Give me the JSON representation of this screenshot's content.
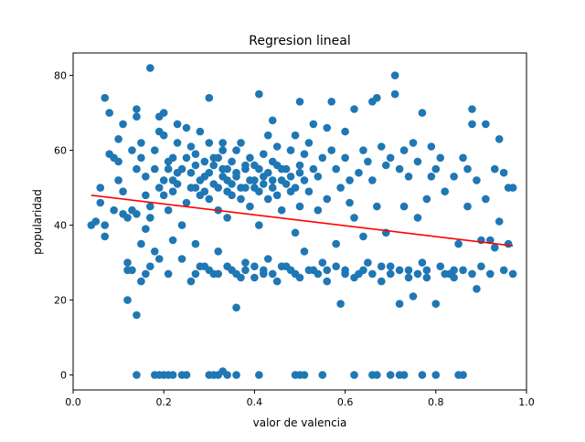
{
  "chart_data": {
    "type": "scatter",
    "title": "Regresion lineal",
    "xlabel": "valor de valencia",
    "ylabel": "popularidad",
    "xlim": [
      0.0,
      1.0
    ],
    "ylim": [
      -4,
      86
    ],
    "x_ticks": [
      0.0,
      0.2,
      0.4,
      0.6,
      0.8,
      1.0
    ],
    "x_tick_labels": [
      "0.0",
      "0.2",
      "0.4",
      "0.6",
      "0.8",
      "1.0"
    ],
    "y_ticks": [
      0,
      20,
      40,
      60,
      80
    ],
    "y_tick_labels": [
      "0",
      "20",
      "40",
      "60",
      "80"
    ],
    "grid": false,
    "colors": {
      "points": "#1f77b4",
      "regression": "#ff0000"
    },
    "series": [
      {
        "type": "scatter",
        "points": [
          [
            0.04,
            40
          ],
          [
            0.05,
            41
          ],
          [
            0.06,
            46
          ],
          [
            0.06,
            50
          ],
          [
            0.07,
            37
          ],
          [
            0.07,
            40
          ],
          [
            0.07,
            74
          ],
          [
            0.08,
            70
          ],
          [
            0.08,
            59
          ],
          [
            0.09,
            58
          ],
          [
            0.09,
            44
          ],
          [
            0.1,
            52
          ],
          [
            0.1,
            57
          ],
          [
            0.1,
            63
          ],
          [
            0.11,
            67
          ],
          [
            0.11,
            49
          ],
          [
            0.11,
            43
          ],
          [
            0.12,
            42
          ],
          [
            0.12,
            28
          ],
          [
            0.12,
            30
          ],
          [
            0.12,
            20
          ],
          [
            0.13,
            28
          ],
          [
            0.13,
            60
          ],
          [
            0.13,
            44
          ],
          [
            0.14,
            69
          ],
          [
            0.14,
            71
          ],
          [
            0.14,
            55
          ],
          [
            0.14,
            43
          ],
          [
            0.14,
            16
          ],
          [
            0.15,
            35
          ],
          [
            0.15,
            58
          ],
          [
            0.15,
            62
          ],
          [
            0.15,
            25
          ],
          [
            0.16,
            27
          ],
          [
            0.16,
            39
          ],
          [
            0.16,
            48
          ],
          [
            0.16,
            53
          ],
          [
            0.17,
            82
          ],
          [
            0.17,
            42
          ],
          [
            0.17,
            45
          ],
          [
            0.17,
            29
          ],
          [
            0.18,
            55
          ],
          [
            0.18,
            60
          ],
          [
            0.18,
            33
          ],
          [
            0.19,
            69
          ],
          [
            0.19,
            50
          ],
          [
            0.19,
            65
          ],
          [
            0.19,
            31
          ],
          [
            0.2,
            64
          ],
          [
            0.2,
            70
          ],
          [
            0.2,
            48
          ],
          [
            0.21,
            57
          ],
          [
            0.21,
            44
          ],
          [
            0.21,
            27
          ],
          [
            0.22,
            52
          ],
          [
            0.22,
            58
          ],
          [
            0.22,
            36
          ],
          [
            0.23,
            62
          ],
          [
            0.23,
            67
          ],
          [
            0.23,
            51
          ],
          [
            0.24,
            55
          ],
          [
            0.24,
            40
          ],
          [
            0.24,
            31
          ],
          [
            0.25,
            66
          ],
          [
            0.25,
            58
          ],
          [
            0.25,
            46
          ],
          [
            0.26,
            54
          ],
          [
            0.26,
            61
          ],
          [
            0.26,
            25
          ],
          [
            0.27,
            59
          ],
          [
            0.27,
            50
          ],
          [
            0.27,
            35
          ],
          [
            0.28,
            48
          ],
          [
            0.28,
            65
          ],
          [
            0.29,
            57
          ],
          [
            0.29,
            53
          ],
          [
            0.29,
            29
          ],
          [
            0.3,
            74
          ],
          [
            0.3,
            62
          ],
          [
            0.3,
            47
          ],
          [
            0.31,
            56
          ],
          [
            0.31,
            51
          ],
          [
            0.31,
            27
          ],
          [
            0.32,
            58
          ],
          [
            0.32,
            44
          ],
          [
            0.32,
            33
          ],
          [
            0.33,
            53
          ],
          [
            0.33,
            60
          ],
          [
            0.33,
            62
          ],
          [
            0.34,
            55
          ],
          [
            0.34,
            49
          ],
          [
            0.34,
            42
          ],
          [
            0.35,
            57
          ],
          [
            0.35,
            51
          ],
          [
            0.35,
            28
          ],
          [
            0.36,
            18
          ],
          [
            0.36,
            60
          ],
          [
            0.36,
            53
          ],
          [
            0.37,
            47
          ],
          [
            0.37,
            62
          ],
          [
            0.37,
            26
          ],
          [
            0.38,
            55
          ],
          [
            0.38,
            50
          ],
          [
            0.38,
            30
          ],
          [
            0.39,
            58
          ],
          [
            0.39,
            45
          ],
          [
            0.4,
            52
          ],
          [
            0.4,
            56
          ],
          [
            0.4,
            29
          ],
          [
            0.41,
            75
          ],
          [
            0.41,
            49
          ],
          [
            0.41,
            40
          ],
          [
            0.42,
            59
          ],
          [
            0.42,
            53
          ],
          [
            0.42,
            27
          ],
          [
            0.43,
            64
          ],
          [
            0.43,
            47
          ],
          [
            0.43,
            31
          ],
          [
            0.44,
            57
          ],
          [
            0.44,
            68
          ],
          [
            0.44,
            50
          ],
          [
            0.45,
            56
          ],
          [
            0.45,
            61
          ],
          [
            0.45,
            25
          ],
          [
            0.46,
            44
          ],
          [
            0.46,
            52
          ],
          [
            0.47,
            55
          ],
          [
            0.47,
            29
          ],
          [
            0.48,
            49
          ],
          [
            0.48,
            60
          ],
          [
            0.49,
            64
          ],
          [
            0.49,
            38
          ],
          [
            0.49,
            27
          ],
          [
            0.5,
            73
          ],
          [
            0.5,
            54
          ],
          [
            0.5,
            45
          ],
          [
            0.51,
            59
          ],
          [
            0.51,
            33
          ],
          [
            0.52,
            62
          ],
          [
            0.52,
            49
          ],
          [
            0.53,
            67
          ],
          [
            0.53,
            55
          ],
          [
            0.53,
            28
          ],
          [
            0.54,
            44
          ],
          [
            0.54,
            53
          ],
          [
            0.55,
            58
          ],
          [
            0.55,
            30
          ],
          [
            0.56,
            66
          ],
          [
            0.56,
            47
          ],
          [
            0.56,
            25
          ],
          [
            0.57,
            73
          ],
          [
            0.57,
            60
          ],
          [
            0.58,
            55
          ],
          [
            0.58,
            35
          ],
          [
            0.59,
            50
          ],
          [
            0.59,
            19
          ],
          [
            0.6,
            65
          ],
          [
            0.6,
            58
          ],
          [
            0.6,
            28
          ],
          [
            0.61,
            52
          ],
          [
            0.61,
            46
          ],
          [
            0.62,
            71
          ],
          [
            0.62,
            42
          ],
          [
            0.63,
            54
          ],
          [
            0.63,
            27
          ],
          [
            0.64,
            60
          ],
          [
            0.64,
            37
          ],
          [
            0.65,
            57
          ],
          [
            0.65,
            30
          ],
          [
            0.66,
            73
          ],
          [
            0.66,
            52
          ],
          [
            0.67,
            74
          ],
          [
            0.67,
            45
          ],
          [
            0.68,
            61
          ],
          [
            0.68,
            25
          ],
          [
            0.69,
            56
          ],
          [
            0.69,
            38
          ],
          [
            0.7,
            58
          ],
          [
            0.7,
            29
          ],
          [
            0.71,
            75
          ],
          [
            0.71,
            80
          ],
          [
            0.72,
            55
          ],
          [
            0.72,
            19
          ],
          [
            0.73,
            60
          ],
          [
            0.73,
            45
          ],
          [
            0.74,
            53
          ],
          [
            0.74,
            28
          ],
          [
            0.75,
            62
          ],
          [
            0.75,
            21
          ],
          [
            0.76,
            57
          ],
          [
            0.76,
            42
          ],
          [
            0.77,
            70
          ],
          [
            0.77,
            30
          ],
          [
            0.78,
            47
          ],
          [
            0.78,
            26
          ],
          [
            0.79,
            61
          ],
          [
            0.79,
            53
          ],
          [
            0.8,
            55
          ],
          [
            0.8,
            19
          ],
          [
            0.81,
            58
          ],
          [
            0.81,
            29
          ],
          [
            0.82,
            49
          ],
          [
            0.83,
            27
          ],
          [
            0.84,
            53
          ],
          [
            0.84,
            26
          ],
          [
            0.85,
            35
          ],
          [
            0.86,
            58
          ],
          [
            0.86,
            28
          ],
          [
            0.87,
            55
          ],
          [
            0.87,
            45
          ],
          [
            0.88,
            71
          ],
          [
            0.88,
            67
          ],
          [
            0.89,
            52
          ],
          [
            0.89,
            23
          ],
          [
            0.9,
            36
          ],
          [
            0.9,
            29
          ],
          [
            0.91,
            67
          ],
          [
            0.91,
            47
          ],
          [
            0.92,
            36
          ],
          [
            0.92,
            27
          ],
          [
            0.93,
            55
          ],
          [
            0.93,
            34
          ],
          [
            0.94,
            63
          ],
          [
            0.94,
            41
          ],
          [
            0.95,
            54
          ],
          [
            0.95,
            28
          ],
          [
            0.96,
            50
          ],
          [
            0.96,
            35
          ],
          [
            0.97,
            50
          ],
          [
            0.97,
            27
          ],
          [
            0.14,
            0
          ],
          [
            0.18,
            0
          ],
          [
            0.19,
            0
          ],
          [
            0.2,
            0
          ],
          [
            0.21,
            0
          ],
          [
            0.22,
            0
          ],
          [
            0.24,
            0
          ],
          [
            0.25,
            0
          ],
          [
            0.3,
            0
          ],
          [
            0.31,
            0
          ],
          [
            0.32,
            0
          ],
          [
            0.33,
            1
          ],
          [
            0.34,
            0
          ],
          [
            0.36,
            0
          ],
          [
            0.41,
            0
          ],
          [
            0.49,
            0
          ],
          [
            0.5,
            0
          ],
          [
            0.51,
            0
          ],
          [
            0.55,
            0
          ],
          [
            0.62,
            0
          ],
          [
            0.66,
            0
          ],
          [
            0.67,
            0
          ],
          [
            0.7,
            0
          ],
          [
            0.72,
            0
          ],
          [
            0.73,
            0
          ],
          [
            0.77,
            0
          ],
          [
            0.8,
            0
          ],
          [
            0.85,
            0
          ],
          [
            0.86,
            0
          ],
          [
            0.2,
            52
          ],
          [
            0.21,
            55
          ],
          [
            0.22,
            49
          ],
          [
            0.23,
            54
          ],
          [
            0.26,
            50
          ],
          [
            0.27,
            56
          ],
          [
            0.28,
            52
          ],
          [
            0.29,
            49
          ],
          [
            0.3,
            54
          ],
          [
            0.31,
            58
          ],
          [
            0.32,
            50
          ],
          [
            0.33,
            55
          ],
          [
            0.34,
            52
          ],
          [
            0.35,
            48
          ],
          [
            0.36,
            54
          ],
          [
            0.37,
            50
          ],
          [
            0.38,
            56
          ],
          [
            0.39,
            52
          ],
          [
            0.4,
            50
          ],
          [
            0.41,
            55
          ],
          [
            0.42,
            51
          ],
          [
            0.43,
            54
          ],
          [
            0.44,
            52
          ],
          [
            0.45,
            48
          ],
          [
            0.46,
            55
          ],
          [
            0.47,
            51
          ],
          [
            0.48,
            53
          ],
          [
            0.49,
            50
          ],
          [
            0.5,
            56
          ],
          [
            0.51,
            52
          ],
          [
            0.27,
            27
          ],
          [
            0.28,
            29
          ],
          [
            0.3,
            28
          ],
          [
            0.32,
            27
          ],
          [
            0.34,
            29
          ],
          [
            0.36,
            27
          ],
          [
            0.38,
            28
          ],
          [
            0.4,
            26
          ],
          [
            0.42,
            28
          ],
          [
            0.44,
            27
          ],
          [
            0.46,
            29
          ],
          [
            0.48,
            28
          ],
          [
            0.5,
            26
          ],
          [
            0.52,
            28
          ],
          [
            0.54,
            27
          ],
          [
            0.56,
            28
          ],
          [
            0.58,
            29
          ],
          [
            0.6,
            27
          ],
          [
            0.62,
            26
          ],
          [
            0.64,
            28
          ],
          [
            0.66,
            27
          ],
          [
            0.68,
            29
          ],
          [
            0.7,
            27
          ],
          [
            0.72,
            28
          ],
          [
            0.74,
            26
          ],
          [
            0.76,
            27
          ],
          [
            0.78,
            28
          ],
          [
            0.82,
            27
          ],
          [
            0.84,
            28
          ],
          [
            0.88,
            27
          ]
        ]
      },
      {
        "type": "line",
        "points": [
          [
            0.04,
            48
          ],
          [
            0.97,
            34.5
          ]
        ]
      }
    ]
  }
}
